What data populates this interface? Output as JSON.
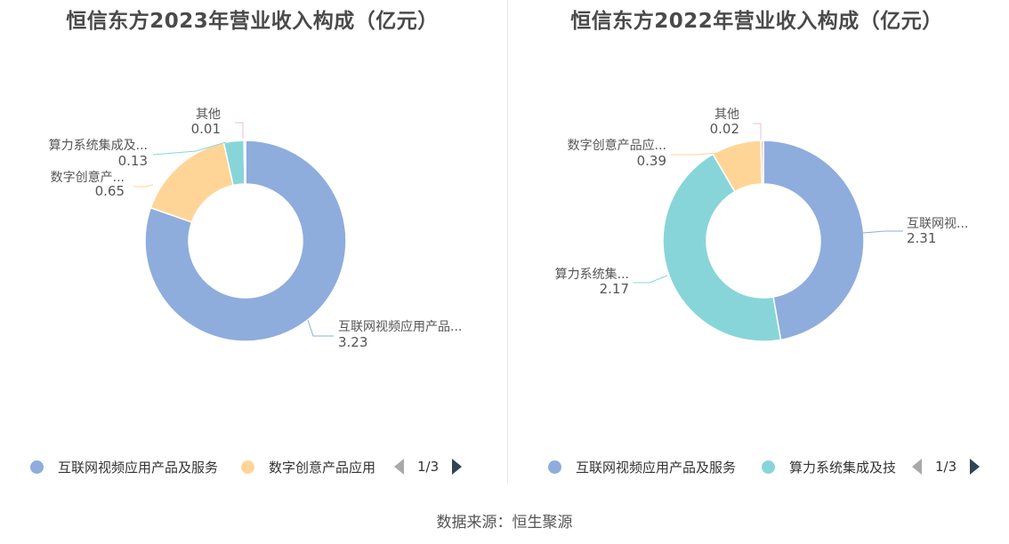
{
  "chart_data": [
    {
      "type": "pie",
      "title": "恒信东方2023年营业收入构成（亿元）",
      "colors": [
        "#8eaddc",
        "#ffd597",
        "#88d5d9",
        "#e8bfd6"
      ],
      "slices": [
        {
          "label": "互联网视频应用产品...",
          "value": 3.23,
          "value_label": "3.23"
        },
        {
          "label": "数字创意产...",
          "value": 0.65,
          "value_label": "0.65"
        },
        {
          "label": "算力系统集成及...",
          "value": 0.13,
          "value_label": "0.13"
        },
        {
          "label": "其他",
          "value": 0.01,
          "value_label": "0.01"
        }
      ],
      "legend": {
        "items": [
          {
            "label": "互联网视频应用产品及服务",
            "color": "#8eaddc"
          },
          {
            "label": "数字创意产品应用",
            "color": "#ffd597"
          }
        ],
        "page": "1/3",
        "placement": "bottom"
      }
    },
    {
      "type": "pie",
      "title": "恒信东方2022年营业收入构成（亿元）",
      "colors": [
        "#8eaddc",
        "#88d5d9",
        "#ffd597",
        "#e8bfd6"
      ],
      "slices": [
        {
          "label": "互联网视...",
          "value": 2.31,
          "value_label": "2.31"
        },
        {
          "label": "算力系统集...",
          "value": 2.17,
          "value_label": "2.17"
        },
        {
          "label": "数字创意产品应...",
          "value": 0.39,
          "value_label": "0.39"
        },
        {
          "label": "其他",
          "value": 0.02,
          "value_label": "0.02"
        }
      ],
      "legend": {
        "items": [
          {
            "label": "互联网视频应用产品及服务",
            "color": "#8eaddc"
          },
          {
            "label": "算力系统集成及技",
            "color": "#88d5d9"
          }
        ],
        "page": "1/3",
        "placement": "bottom"
      }
    }
  ],
  "footer": {
    "source": "数据来源：恒生聚源"
  }
}
